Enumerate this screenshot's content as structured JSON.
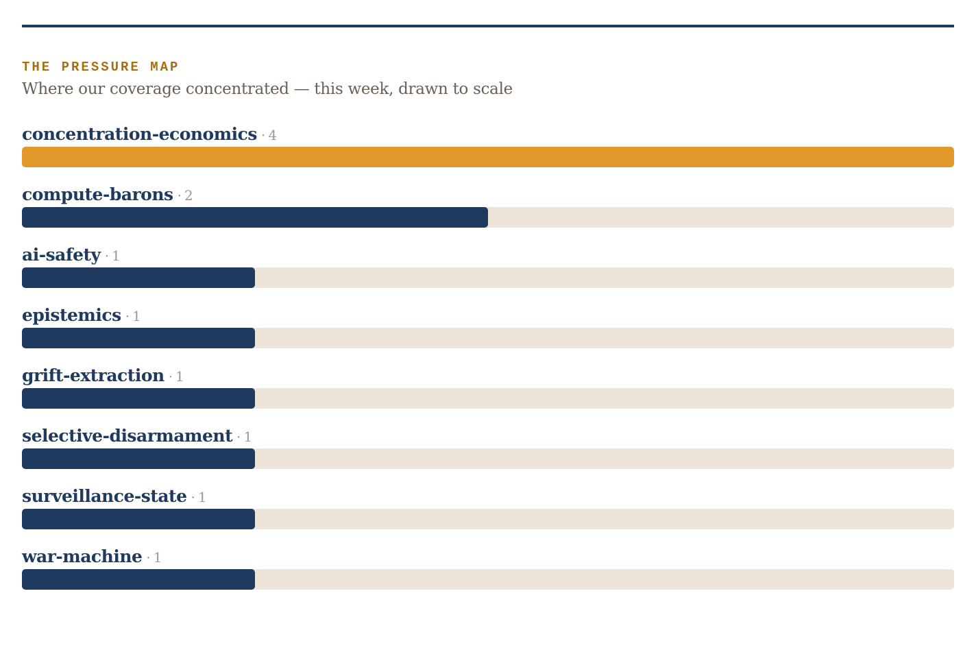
{
  "header": {
    "kicker": "THE PRESSURE MAP",
    "subtitle": "Where our coverage concentrated — this week, drawn to scale"
  },
  "colors": {
    "rule": "#1f3a5f",
    "kicker": "#a66f14",
    "highlight_bar": "#e0982b",
    "bar": "#1f3a5f",
    "track": "#ede5da"
  },
  "separator": "·",
  "chart_data": {
    "type": "bar",
    "orientation": "horizontal",
    "title": "THE PRESSURE MAP",
    "subtitle": "Where our coverage concentrated — this week, drawn to scale",
    "categories": [
      "concentration-economics",
      "compute-barons",
      "ai-safety",
      "epistemics",
      "grift-extraction",
      "selective-disarmament",
      "surveillance-state",
      "war-machine"
    ],
    "values": [
      4,
      2,
      1,
      1,
      1,
      1,
      1,
      1
    ],
    "xlim": [
      0,
      4
    ],
    "highlight_index": 0,
    "grid": false,
    "legend": "none"
  }
}
